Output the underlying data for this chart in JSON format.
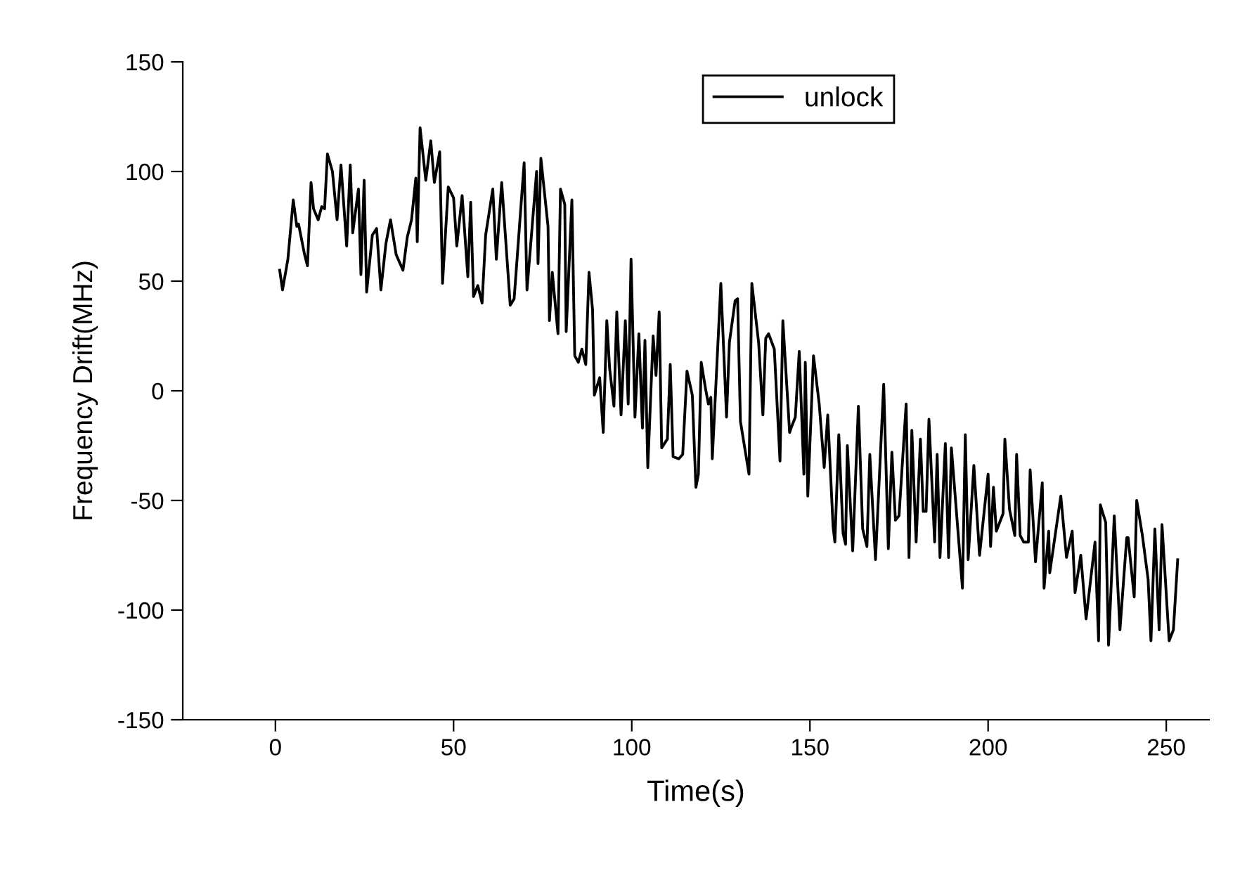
{
  "chart_data": {
    "type": "line",
    "xlabel": "Time(s)",
    "ylabel": "Frequency Drift(MHz)",
    "xlim": [
      -26,
      262
    ],
    "ylim": [
      -150,
      150
    ],
    "xticks": [
      0,
      50,
      100,
      150,
      200,
      250
    ],
    "yticks": [
      -150,
      -100,
      -50,
      0,
      50,
      100,
      150
    ],
    "grid": false,
    "legend": "top",
    "marker": "none",
    "line_style": "solid",
    "series": [
      {
        "name": "unlock",
        "color": "#000000",
        "x": [
          1.2,
          2,
          3.5,
          5,
          6,
          6.5,
          8.2,
          9,
          10,
          10.7,
          12,
          13,
          13.8,
          14.6,
          16,
          17.3,
          18.4,
          20,
          21,
          21.7,
          23.3,
          24,
          24.9,
          25.6,
          27.2,
          28.4,
          29.6,
          31,
          32.3,
          33.9,
          35.8,
          37,
          38.2,
          39.4,
          39.8,
          40.6,
          42.2,
          43.6,
          44.6,
          46.1,
          46.9,
          48.5,
          50,
          50.9,
          52.4,
          54,
          54.8,
          55.6,
          56.8,
          58,
          59,
          61,
          62,
          63.5,
          65.9,
          67,
          69.8,
          70.6,
          73.3,
          73.7,
          74.5,
          76.5,
          76.9,
          77.7,
          79.3,
          80,
          81.2,
          81.6,
          83.2,
          84,
          85,
          86,
          87.1,
          88,
          89,
          89.5,
          91,
          92,
          93,
          93.8,
          95,
          95.8,
          97,
          98.2,
          99,
          99.8,
          100.9,
          102,
          103,
          103.7,
          104.5,
          106,
          106.8,
          107.7,
          108.4,
          110,
          110.8,
          111.6,
          113.2,
          114.3,
          115.5,
          117,
          118,
          118.7,
          119.5,
          120.7,
          121.5,
          122.2,
          122.6,
          125,
          126.6,
          127.4,
          129,
          129.7,
          130.5,
          132.9,
          133.7,
          135.6,
          136.8,
          137.6,
          138.4,
          140,
          141.6,
          142.4,
          144.3,
          144.7,
          145.9,
          147,
          148.3,
          148.7,
          149.4,
          151,
          152.6,
          154,
          155,
          156.5,
          157,
          158.1,
          159.3,
          160,
          160.5,
          162,
          163.6,
          164.8,
          166,
          166.8,
          168.4,
          170.7,
          172,
          173,
          174,
          175,
          177,
          177.8,
          178.6,
          179.8,
          181,
          181.8,
          182.6,
          183.4,
          185,
          185.7,
          186.5,
          188,
          188.9,
          189.7,
          192.8,
          193.6,
          194.4,
          196,
          197.6,
          200,
          200.7,
          201.5,
          202.3,
          204.2,
          204.7,
          206,
          207.5,
          208,
          209,
          210,
          211.3,
          211.8,
          213.3,
          215.2,
          215.7,
          217,
          217.3,
          220.4,
          222,
          223.6,
          224.4,
          226,
          227.5,
          230,
          231,
          231.5,
          233,
          233.8,
          235.4,
          237,
          238.9,
          239.3,
          241,
          241.7,
          243.3,
          244.9,
          245.7,
          246.8,
          248,
          248.8,
          250.8,
          252,
          253.2
        ],
        "values": [
          55,
          46,
          60,
          87,
          75,
          76,
          62,
          57,
          95,
          83,
          78,
          84,
          83,
          108,
          100,
          78,
          103,
          66,
          103,
          72,
          92,
          53,
          96,
          45,
          71,
          74,
          46,
          67,
          78,
          62,
          55,
          70,
          78,
          97,
          68,
          120,
          96,
          114,
          95,
          109,
          49,
          93,
          88,
          66,
          89,
          52,
          86,
          43,
          48,
          40,
          71,
          92,
          60,
          95,
          39,
          42,
          104,
          46,
          100,
          58,
          106,
          75,
          32,
          54,
          26,
          92,
          85,
          27,
          87,
          16,
          13,
          19,
          12,
          54,
          37,
          -2,
          6,
          -19,
          32,
          10,
          -7,
          36,
          -11,
          32,
          -6,
          60,
          -12,
          26,
          -17,
          23,
          -35,
          25,
          7,
          36,
          -26,
          -22,
          12,
          -30,
          -31,
          -29,
          9,
          -2,
          -44,
          -38,
          13,
          1,
          -6,
          -3,
          -31,
          49,
          -12,
          22,
          41,
          42,
          -14,
          -38,
          49,
          22,
          -11,
          24,
          26,
          19,
          -32,
          32,
          -19,
          -17,
          -12,
          18,
          -38,
          13,
          -48,
          16,
          -6,
          -35,
          -11,
          -62,
          -69,
          -20,
          -65,
          -70,
          -25,
          -73,
          -7,
          -63,
          -71,
          -29,
          -77,
          3,
          -72,
          -28,
          -59,
          -57,
          -6,
          -76,
          -18,
          -69,
          -22,
          -55,
          -55,
          -13,
          -69,
          -29,
          -76,
          -24,
          -76,
          -26,
          -90,
          -20,
          -77,
          -34,
          -75,
          -38,
          -71,
          -44,
          -64,
          -56,
          -22,
          -54,
          -66,
          -29,
          -66,
          -69,
          -69,
          -36,
          -78,
          -42,
          -90,
          -64,
          -83,
          -48,
          -76,
          -64,
          -92,
          -75,
          -104,
          -69,
          -114,
          -52,
          -60,
          -116,
          -57,
          -109,
          -67,
          -67,
          -94,
          -50,
          -66,
          -86,
          -114,
          -63,
          -109,
          -61,
          -114,
          -109,
          -77
        ]
      }
    ]
  }
}
